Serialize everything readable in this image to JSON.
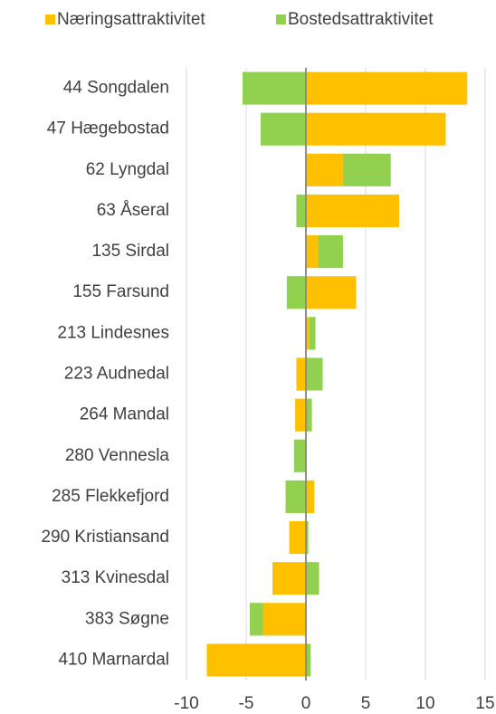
{
  "chart_data": {
    "type": "bar",
    "orientation": "horizontal",
    "stacked": true,
    "categories": [
      "44 Songdalen",
      "47 Hægebostad",
      "62 Lyngdal",
      "63 Åseral",
      "135 Sirdal",
      "155 Farsund",
      "213 Lindesnes",
      "223 Audnedal",
      "264 Mandal",
      "280 Vennesla",
      "285 Flekkefjord",
      "290 Kristiansand",
      "313 Kvinesdal",
      "383 Søgne",
      "410 Marnardal"
    ],
    "series": [
      {
        "name": "Næringsattraktivitet",
        "color": "#ffc000",
        "values": [
          13.5,
          11.7,
          3.1,
          7.8,
          1.0,
          4.2,
          0.3,
          -0.8,
          -0.9,
          0,
          0.7,
          -1.4,
          -2.8,
          -3.6,
          -8.3
        ]
      },
      {
        "name": "Bostedsattraktivitet",
        "color": "#92d050",
        "values": [
          -5.3,
          -3.8,
          4.0,
          -0.8,
          2.1,
          -1.6,
          0.5,
          1.4,
          0.5,
          -1.0,
          -1.7,
          0.2,
          1.1,
          -1.1,
          0.4
        ]
      }
    ],
    "xlim": [
      -10,
      15
    ],
    "xticks": [
      -10,
      -5,
      0,
      5,
      10,
      15
    ],
    "grid": true,
    "legend": "top"
  }
}
